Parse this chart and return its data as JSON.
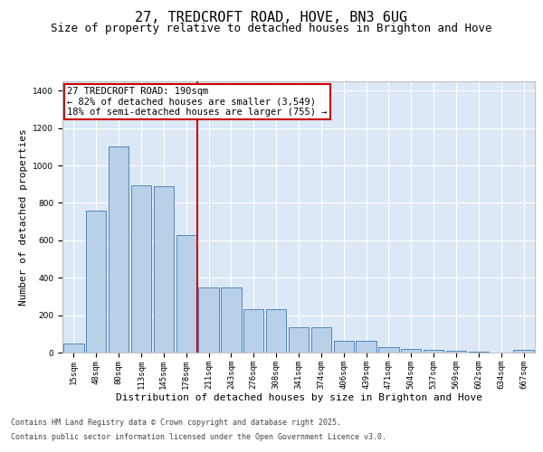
{
  "title": "27, TREDCROFT ROAD, HOVE, BN3 6UG",
  "subtitle": "Size of property relative to detached houses in Brighton and Hove",
  "xlabel": "Distribution of detached houses by size in Brighton and Hove",
  "ylabel": "Number of detached properties",
  "categories": [
    "15sqm",
    "48sqm",
    "80sqm",
    "113sqm",
    "145sqm",
    "178sqm",
    "211sqm",
    "243sqm",
    "276sqm",
    "308sqm",
    "341sqm",
    "374sqm",
    "406sqm",
    "439sqm",
    "471sqm",
    "504sqm",
    "537sqm",
    "569sqm",
    "602sqm",
    "634sqm",
    "667sqm"
  ],
  "values": [
    50,
    760,
    1100,
    895,
    890,
    630,
    350,
    350,
    230,
    230,
    135,
    135,
    65,
    65,
    30,
    20,
    15,
    10,
    5,
    0,
    15
  ],
  "bar_color": "#b8d0e8",
  "bar_edge_color": "#5588bb",
  "vline_color": "#cc0000",
  "annotation_box_color": "#ffffff",
  "annotation_box_edge": "#cc0000",
  "plot_background": "#dce8f5",
  "fig_background": "#ffffff",
  "ylim": [
    0,
    1450
  ],
  "yticks": [
    0,
    200,
    400,
    600,
    800,
    1000,
    1200,
    1400
  ],
  "property_line_label": "27 TREDCROFT ROAD: 190sqm",
  "annotation_line1": "← 82% of detached houses are smaller (3,549)",
  "annotation_line2": "18% of semi-detached houses are larger (755) →",
  "footer_line1": "Contains HM Land Registry data © Crown copyright and database right 2025.",
  "footer_line2": "Contains public sector information licensed under the Open Government Licence v3.0.",
  "title_fontsize": 11,
  "subtitle_fontsize": 9,
  "axis_label_fontsize": 8,
  "tick_fontsize": 6.5,
  "annotation_fontsize": 7.5,
  "footer_fontsize": 6
}
